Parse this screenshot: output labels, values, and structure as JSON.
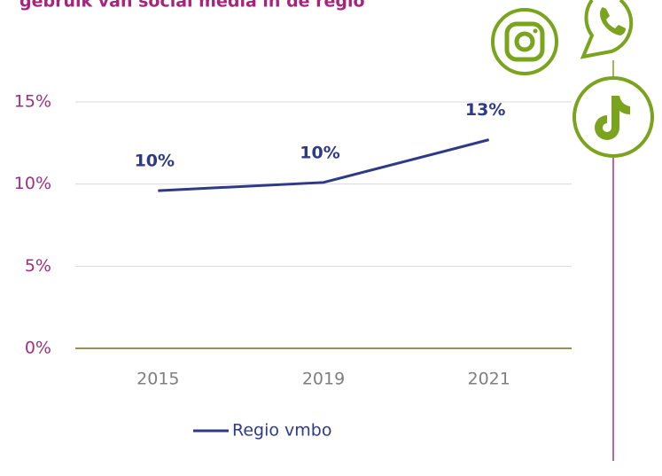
{
  "chart_data": {
    "type": "line",
    "title": "gebruik van social media in de regio",
    "categories": [
      "2015",
      "2019",
      "2021"
    ],
    "series": [
      {
        "name": "Regio vmbo",
        "color": "#2e3a87",
        "values": [
          9.6,
          10.1,
          12.7
        ],
        "value_labels": [
          "10%",
          "10%",
          "13%"
        ]
      }
    ],
    "ylim": [
      0,
      15
    ],
    "yticks": [
      {
        "value": 0,
        "label": "0%"
      },
      {
        "value": 5,
        "label": "5%"
      },
      {
        "value": 10,
        "label": "10%"
      },
      {
        "value": 15,
        "label": "15%"
      }
    ],
    "grid": true,
    "legend": "bottom"
  }
}
